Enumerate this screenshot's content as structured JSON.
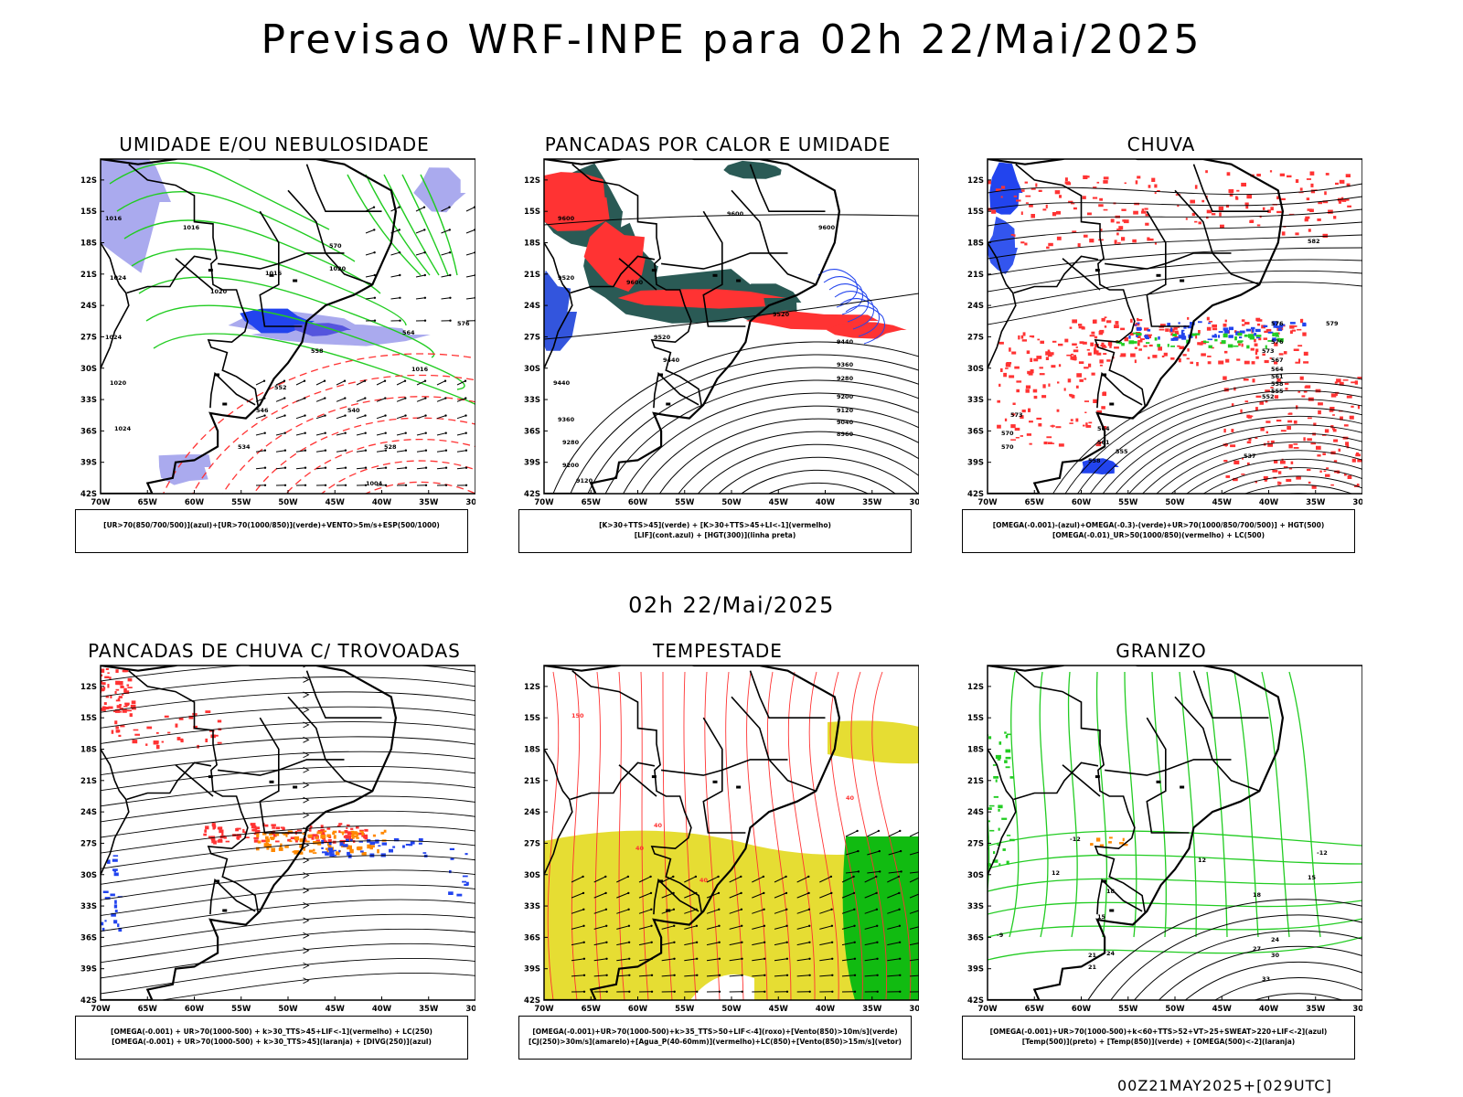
{
  "title": "Previsao WRF-INPE  para 02h 22/Mai/2025",
  "mid_title": "02h 22/Mai/2025",
  "footer": "00Z21MAY2025+[029UTC]",
  "axes": {
    "lat_labels": [
      "12S",
      "15S",
      "18S",
      "21S",
      "24S",
      "27S",
      "30S",
      "33S",
      "36S",
      "39S",
      "42S"
    ],
    "lon_labels": [
      "70W",
      "65W",
      "60W",
      "55W",
      "50W",
      "45W",
      "40W",
      "35W",
      "30W"
    ]
  },
  "colors": {
    "red": "#ff3333",
    "green": "#22cc22",
    "blue": "#2244ee",
    "lavender": "#aaaaee",
    "teal": "#2a5a55",
    "yellow": "#e6dd33",
    "orange": "#ff8800",
    "bright_green": "#11bb11"
  },
  "panels": [
    {
      "title": "UMIDADE E/OU NEBULOSIDADE",
      "legend": [
        "[UR>70(850/700/500)](azul)+[UR>70(1000/850)](verde)+VENTO>5m/s+ESP(500/1000)"
      ],
      "labels": [
        "1016",
        "1024",
        "1016",
        "1020",
        "1016",
        "1020",
        "1024",
        "1020",
        "1024",
        "1016",
        "1004",
        "570",
        "558",
        "552",
        "546",
        "540",
        "534",
        "528",
        "564",
        "576"
      ]
    },
    {
      "title": "PANCADAS POR CALOR E UMIDADE",
      "legend": [
        "[K>30+TTS>45](verde) + [K>30+TTS>45+LI<-1](vermelho)",
        "[LIF](cont.azul) + [HGT(300)](linha preta)"
      ],
      "labels": [
        "9600",
        "9600",
        "9520",
        "9600",
        "9520",
        "9520",
        "9440",
        "9440",
        "9360",
        "9440",
        "9280",
        "9360",
        "9200",
        "9120",
        "9040",
        "8960",
        "9280",
        "9200",
        "9120",
        "9600"
      ]
    },
    {
      "title": "CHUVA",
      "legend": [
        "[OMEGA(-0.001)-(azul)+OMEGA(-0.3)-(verde)+UR>70(1000/850/700/500)] + HGT(500)",
        "[OMEGA(-0.01)_UR>50(1000/850)(vermelho) + LC(500)"
      ],
      "labels": [
        "582",
        "579",
        "576",
        "576",
        "573",
        "570",
        "567",
        "564",
        "561",
        "558",
        "555",
        "573",
        "570",
        "564",
        "561",
        "558",
        "555",
        "537",
        "552"
      ]
    },
    {
      "title": "PANCADAS DE CHUVA C/ TROVOADAS",
      "legend": [
        "[OMEGA(-0.001) + UR>70(1000-500) + k>30_TTS>45+LIF<-1](vermelho) + LC(250)",
        "[OMEGA(-0.001) + UR>70(1000-500) + k>30_TTS>45](laranja) + [DIVG(250)](azul)"
      ],
      "labels": []
    },
    {
      "title": "TEMPESTADE",
      "legend": [
        "[OMEGA(-0.001)+UR>70(1000-500)+k>35_TTS>50+LIF<-4](roxo)+[Vento(850)>10m/s](verde)",
        "[CJ(250)>30m/s](amarelo)+[Agua_P(40-60mm)](vermelho)+LC(850)+[Vento(850)>15m/s](vetor)"
      ],
      "labels": [
        "40",
        "40",
        "40",
        "40",
        "150"
      ]
    },
    {
      "title": "GRANIZO",
      "legend": [
        "[OMEGA(-0.001)+UR>70(1000-500)+k<60+TTS>52+VT>25+SWEAT>220+LIF<-2](azul)",
        "[Temp(500)](preto) + [Temp(850)](verde) + [OMEGA(500)<-2](laranja)"
      ],
      "labels": [
        "-12",
        "12",
        "15",
        "18",
        "12",
        "18",
        "15",
        "21",
        "24",
        "27",
        "30",
        "33",
        "24",
        "21",
        "-9",
        "-12"
      ]
    }
  ]
}
